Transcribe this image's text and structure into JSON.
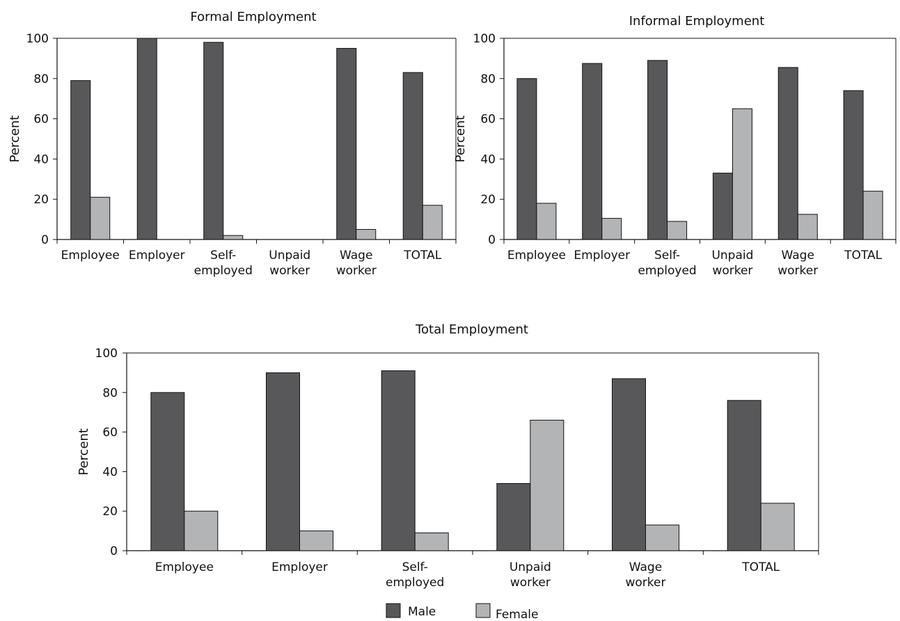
{
  "colors": {
    "male": "#58585a",
    "female": "#b3b4b6",
    "axis": "#111111"
  },
  "legend": {
    "male": "Male",
    "female": "Female"
  },
  "chart_data": [
    {
      "type": "bar",
      "title": "Formal Employment",
      "ylabel": "Percent",
      "ylim": [
        0,
        100
      ],
      "yticks": [
        "0",
        "20",
        "40",
        "60",
        "80",
        "100"
      ],
      "categories": [
        [
          "Employee"
        ],
        [
          "Employer"
        ],
        [
          "Self-",
          "employed"
        ],
        [
          "Unpaid",
          "worker"
        ],
        [
          "Wage",
          "worker"
        ],
        [
          "TOTAL"
        ]
      ],
      "series": [
        {
          "name": "Male",
          "values": [
            79,
            100,
            98,
            0,
            95,
            83
          ]
        },
        {
          "name": "Female",
          "values": [
            21,
            0,
            2,
            0,
            5,
            17
          ]
        }
      ]
    },
    {
      "type": "bar",
      "title": "Informal Employment",
      "ylabel": "Percent",
      "ylim": [
        0,
        100
      ],
      "yticks": [
        "0",
        "20",
        "40",
        "60",
        "80",
        "100"
      ],
      "categories": [
        [
          "Employee"
        ],
        [
          "Employer"
        ],
        [
          "Self-",
          "employed"
        ],
        [
          "Unpaid",
          "worker"
        ],
        [
          "Wage",
          "worker"
        ],
        [
          "TOTAL"
        ]
      ],
      "series": [
        {
          "name": "Male",
          "values": [
            80,
            87.5,
            89,
            33,
            85.5,
            74
          ]
        },
        {
          "name": "Female",
          "values": [
            18,
            10.5,
            9,
            65,
            12.5,
            24
          ]
        }
      ]
    },
    {
      "type": "bar",
      "title": "Total Employment",
      "ylabel": "Percent",
      "ylim": [
        0,
        100
      ],
      "yticks": [
        "0",
        "20",
        "40",
        "60",
        "80",
        "100"
      ],
      "categories": [
        [
          "Employee"
        ],
        [
          "Employer"
        ],
        [
          "Self-",
          "employed"
        ],
        [
          "Unpaid",
          "worker"
        ],
        [
          "Wage",
          "worker"
        ],
        [
          "TOTAL"
        ]
      ],
      "series": [
        {
          "name": "Male",
          "values": [
            80,
            90,
            91,
            34,
            87,
            76
          ]
        },
        {
          "name": "Female",
          "values": [
            20,
            10,
            9,
            66,
            13,
            24
          ]
        }
      ]
    }
  ]
}
